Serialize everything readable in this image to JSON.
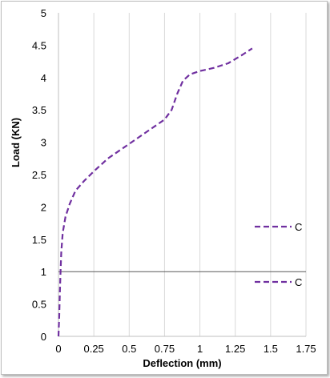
{
  "chart_data": {
    "type": "line",
    "title": "",
    "xlabel": "Deflection (mm)",
    "ylabel": "Load (KN)",
    "xlim": [
      0,
      1.75
    ],
    "ylim": [
      0,
      5
    ],
    "x_ticks": [
      "0",
      "0.25",
      "0.5",
      "0.75",
      "1",
      "1.25",
      "1.5",
      "1.75"
    ],
    "y_ticks": [
      "0",
      "0.5",
      "1",
      "1.5",
      "2",
      "2.5",
      "3",
      "3.5",
      "4",
      "4.5",
      "5"
    ],
    "grid": "vertical",
    "legend_position": "right",
    "series": [
      {
        "name": "C",
        "color": "#7030A0",
        "dash": "dashed",
        "x": [
          0,
          0.005,
          0.01,
          0.015,
          0.02,
          0.03,
          0.05,
          0.08,
          0.12,
          0.18,
          0.25,
          0.35,
          0.45,
          0.55,
          0.65,
          0.75,
          0.8,
          0.84,
          0.88,
          0.93,
          1.0,
          1.1,
          1.2,
          1.3,
          1.37
        ],
        "y": [
          0,
          0.3,
          0.7,
          1.0,
          1.3,
          1.6,
          1.85,
          2.05,
          2.25,
          2.4,
          2.55,
          2.75,
          2.9,
          3.05,
          3.2,
          3.35,
          3.5,
          3.75,
          3.95,
          4.05,
          4.1,
          4.15,
          4.22,
          4.35,
          4.45
        ]
      }
    ],
    "overlay": {
      "line_y": 1.0,
      "ticks": [
        "0",
        "0.5",
        "1"
      ],
      "legend_name": "C"
    }
  }
}
